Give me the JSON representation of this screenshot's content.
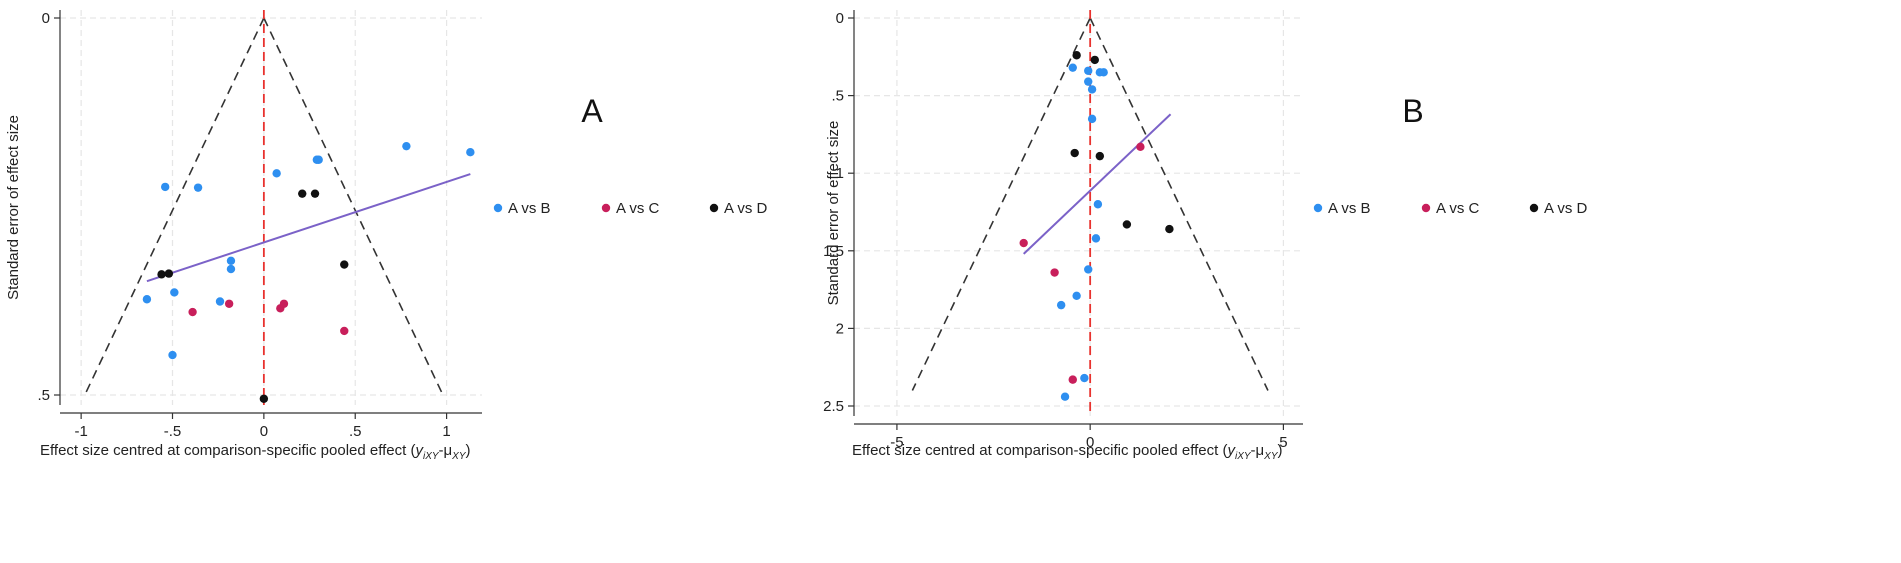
{
  "chart_data": [
    {
      "type": "scatter",
      "panel_label": "A",
      "xlabel": "Effect size centred at comparison-specific pooled effect (",
      "xlabel_math": "y",
      "xlabel_sub1": "iXY",
      "xlabel_mid": "-μ",
      "xlabel_sub2": "XY",
      "xlabel_end": ")",
      "ylabel": "Standard error of effect size",
      "xlim": [
        -1.05,
        1.15
      ],
      "ylim": [
        0,
        0.5
      ],
      "y_reversed": true,
      "xticks": [
        {
          "v": -1,
          "t": "-1"
        },
        {
          "v": -0.5,
          "t": "-.5"
        },
        {
          "v": 0,
          "t": "0"
        },
        {
          "v": 0.5,
          "t": ".5"
        },
        {
          "v": 1,
          "t": "1"
        }
      ],
      "yticks": [
        {
          "v": 0,
          "t": "0"
        },
        {
          "v": 0.5,
          "t": ".5"
        }
      ],
      "grid": true,
      "funnel": {
        "apex": [
          0,
          0
        ],
        "bottom_left": [
          -0.98,
          0.5
        ],
        "bottom_right": [
          0.98,
          0.5
        ],
        "color": "#333333"
      },
      "reference_line": {
        "x": 0,
        "color": "#e8322e"
      },
      "fit_line": {
        "x": [
          -0.64,
          1.13
        ],
        "y": [
          0.349,
          0.207
        ],
        "color": "#7b62c8"
      },
      "legend": {
        "position": "right",
        "items": [
          {
            "name": "A vs B",
            "color": "#2e8ff0"
          },
          {
            "name": "A vs C",
            "color": "#c81f5b"
          },
          {
            "name": "A vs D",
            "color": "#111111"
          }
        ]
      },
      "series": [
        {
          "name": "A vs B",
          "color": "#2e8ff0",
          "points": [
            [
              -0.54,
              0.224
            ],
            [
              -0.36,
              0.225
            ],
            [
              -0.18,
              0.322
            ],
            [
              -0.18,
              0.333
            ],
            [
              -0.49,
              0.364
            ],
            [
              -0.24,
              0.376
            ],
            [
              -0.64,
              0.373
            ],
            [
              -0.5,
              0.447
            ],
            [
              0.07,
              0.206
            ],
            [
              0.29,
              0.188
            ],
            [
              0.3,
              0.188
            ],
            [
              0.78,
              0.17
            ],
            [
              1.13,
              0.178
            ]
          ]
        },
        {
          "name": "A vs C",
          "color": "#c81f5b",
          "points": [
            [
              -0.39,
              0.39
            ],
            [
              -0.19,
              0.379
            ],
            [
              0.09,
              0.385
            ],
            [
              0.11,
              0.379
            ],
            [
              0.44,
              0.415
            ]
          ]
        },
        {
          "name": "A vs D",
          "color": "#111111",
          "points": [
            [
              -0.56,
              0.34
            ],
            [
              -0.52,
              0.339
            ],
            [
              0.21,
              0.233
            ],
            [
              0.28,
              0.233
            ],
            [
              0.44,
              0.327
            ],
            [
              0.0,
              0.505
            ]
          ]
        }
      ]
    },
    {
      "type": "scatter",
      "panel_label": "B",
      "xlabel": "Effect size centred at comparison-specific pooled effect (",
      "xlabel_math": "y",
      "xlabel_sub1": "iXY",
      "xlabel_mid": "-μ",
      "xlabel_sub2": "XY",
      "xlabel_end": ")",
      "ylabel": "Standard error of effect size",
      "xlim": [
        -5.8,
        5.3
      ],
      "ylim": [
        0,
        2.5
      ],
      "y_reversed": true,
      "xticks": [
        {
          "v": -5,
          "t": "-5"
        },
        {
          "v": 0,
          "t": "0"
        },
        {
          "v": 5,
          "t": "5"
        }
      ],
      "yticks": [
        {
          "v": 0,
          "t": "0"
        },
        {
          "v": 0.5,
          "t": ".5"
        },
        {
          "v": 1,
          "t": "1"
        },
        {
          "v": 1.5,
          "t": "1.5"
        },
        {
          "v": 2,
          "t": "2"
        },
        {
          "v": 2.5,
          "t": "2.5"
        }
      ],
      "grid": true,
      "funnel": {
        "apex": [
          0,
          0
        ],
        "bottom_left": [
          -4.6,
          2.4
        ],
        "bottom_right": [
          4.6,
          2.4
        ],
        "color": "#333333"
      },
      "reference_line": {
        "x": 0,
        "color": "#e8322e"
      },
      "fit_line": {
        "x": [
          -1.72,
          2.08
        ],
        "y": [
          1.52,
          0.62
        ],
        "color": "#7b62c8"
      },
      "legend": {
        "position": "right",
        "items": [
          {
            "name": "A vs B",
            "color": "#2e8ff0"
          },
          {
            "name": "A vs C",
            "color": "#c81f5b"
          },
          {
            "name": "A vs D",
            "color": "#111111"
          }
        ]
      },
      "series": [
        {
          "name": "A vs B",
          "color": "#2e8ff0",
          "points": [
            [
              -0.45,
              0.32
            ],
            [
              -0.05,
              0.34
            ],
            [
              0.25,
              0.35
            ],
            [
              0.35,
              0.35
            ],
            [
              -0.05,
              0.41
            ],
            [
              0.05,
              0.46
            ],
            [
              0.05,
              0.65
            ],
            [
              0.2,
              1.2
            ],
            [
              0.15,
              1.42
            ],
            [
              -0.05,
              1.62
            ],
            [
              -0.35,
              1.79
            ],
            [
              -0.75,
              1.85
            ],
            [
              -0.15,
              2.32
            ],
            [
              -0.65,
              2.44
            ]
          ]
        },
        {
          "name": "A vs C",
          "color": "#c81f5b",
          "points": [
            [
              1.3,
              0.83
            ],
            [
              -1.72,
              1.45
            ],
            [
              -0.92,
              1.64
            ],
            [
              -0.45,
              2.33
            ]
          ]
        },
        {
          "name": "A vs D",
          "color": "#111111",
          "points": [
            [
              -0.35,
              0.24
            ],
            [
              0.12,
              0.27
            ],
            [
              -0.4,
              0.87
            ],
            [
              0.25,
              0.89
            ],
            [
              0.95,
              1.33
            ],
            [
              2.05,
              1.36
            ]
          ]
        }
      ]
    }
  ]
}
